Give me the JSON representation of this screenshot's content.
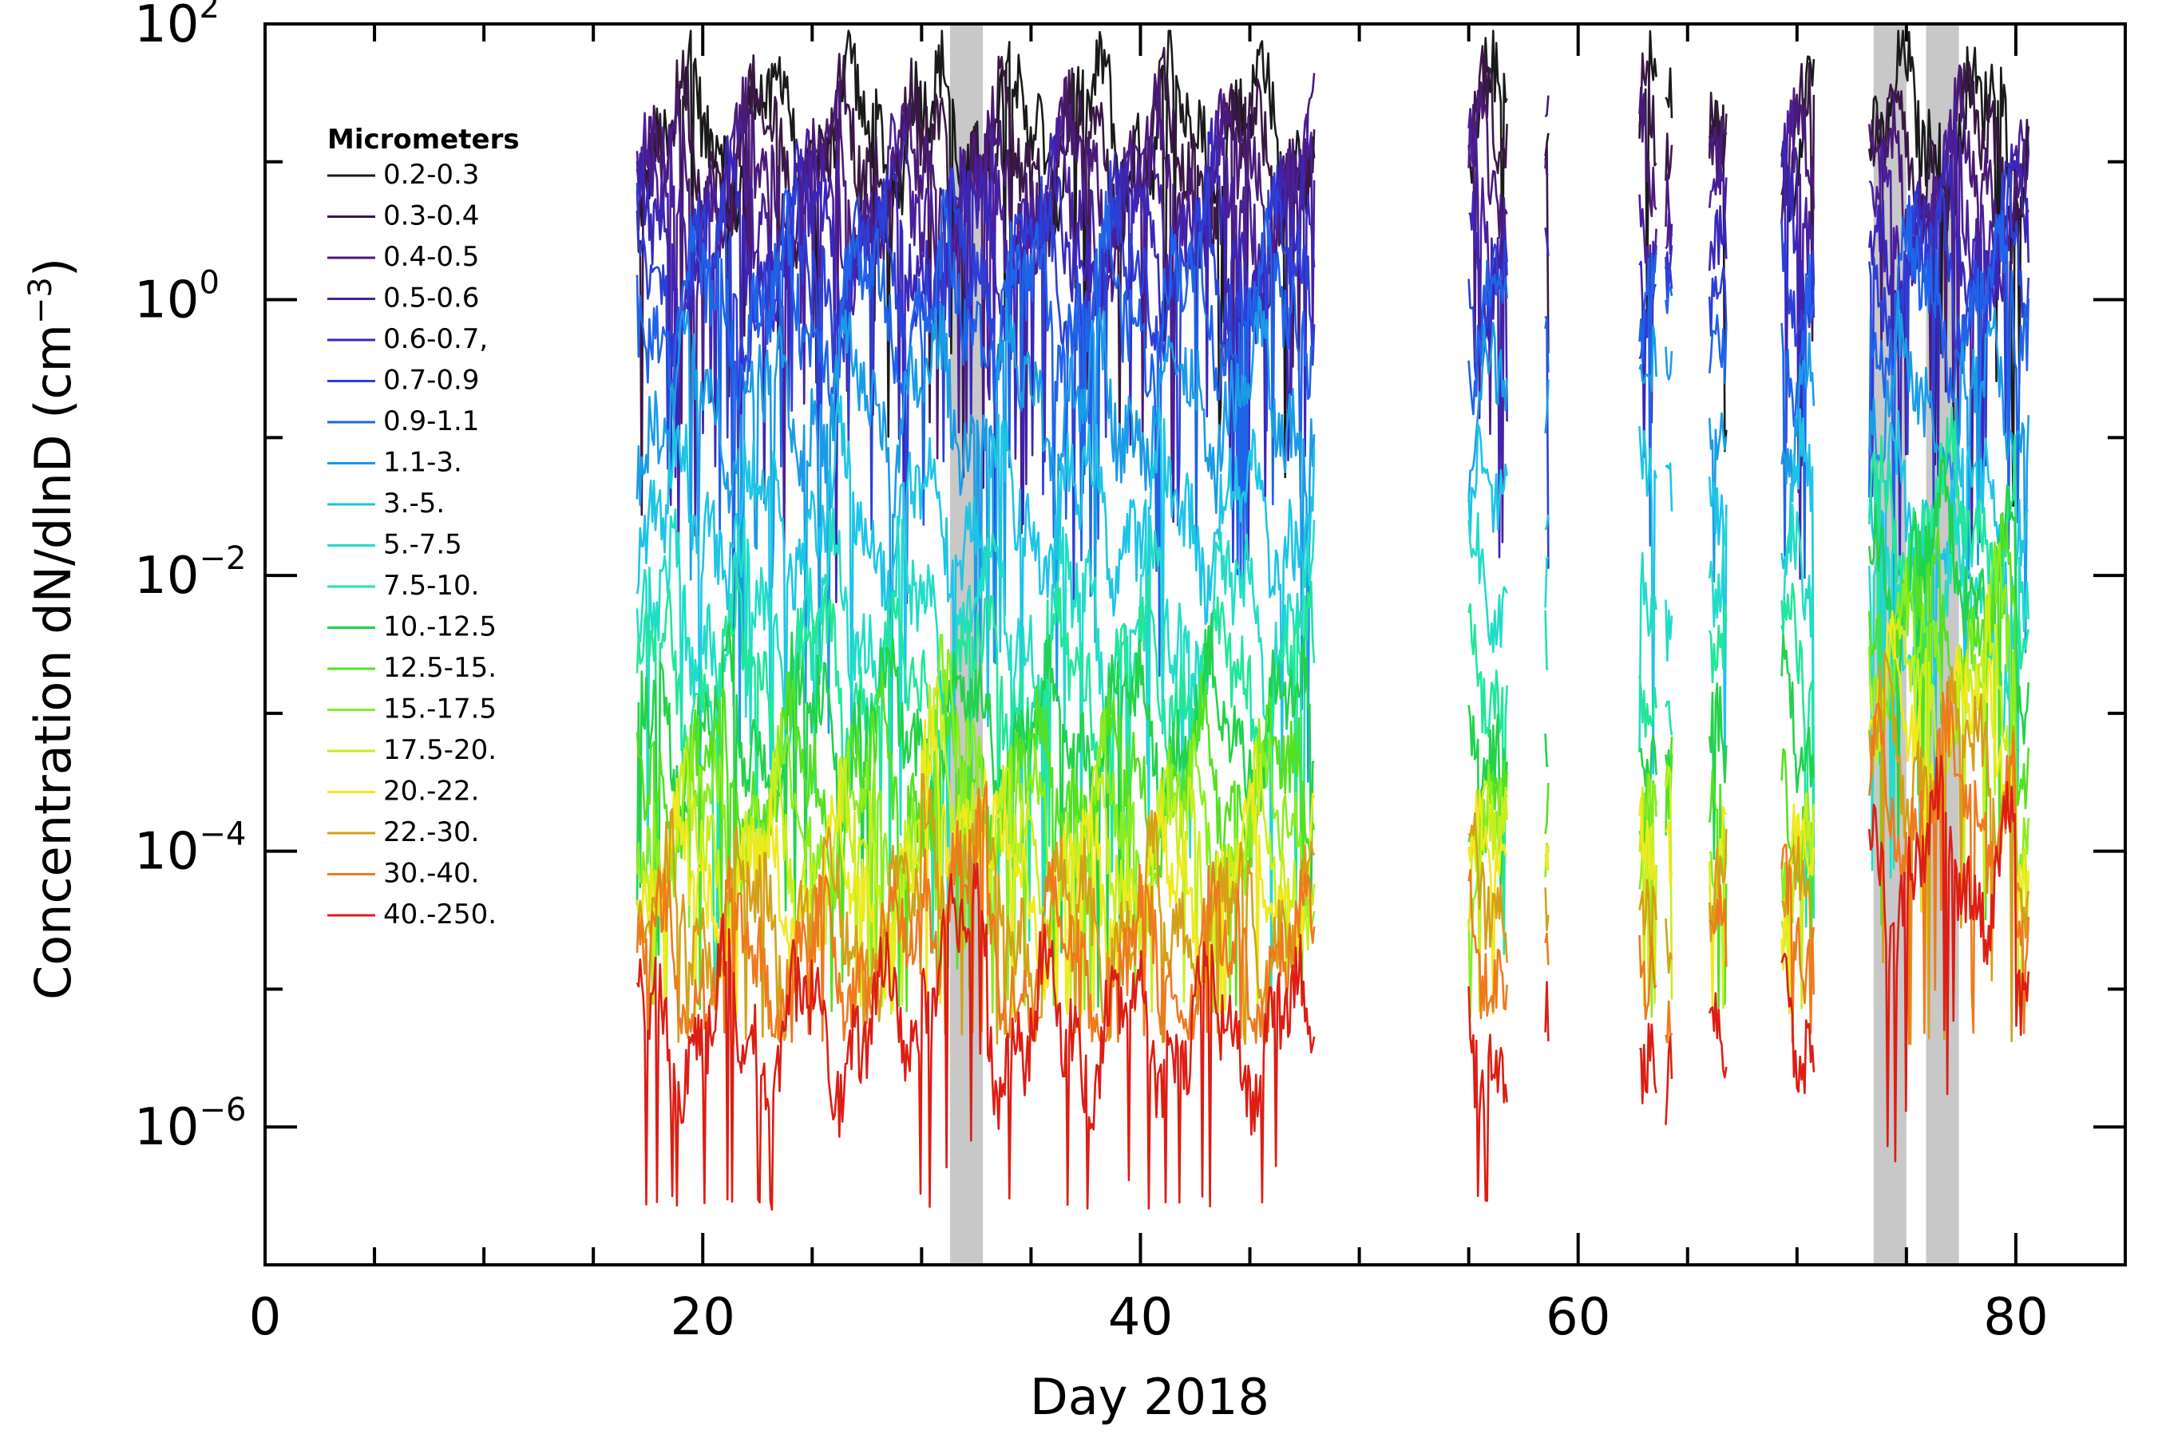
{
  "chart_data": {
    "type": "line",
    "title": "",
    "xlabel": "Day 2018",
    "ylabel": {
      "main": "Concentration dN/dlnD (cm",
      "sup": "−3",
      "close": ")"
    },
    "xlim": [
      0,
      85
    ],
    "ylim_log10": [
      -7.0,
      2.0
    ],
    "y_scale": "log",
    "x_ticks": [
      {
        "value": 0,
        "label": "0"
      },
      {
        "value": 20,
        "label": "20"
      },
      {
        "value": 40,
        "label": "40"
      },
      {
        "value": 60,
        "label": "60"
      },
      {
        "value": 80,
        "label": "80"
      }
    ],
    "y_ticks": [
      {
        "log": 2,
        "base": "10",
        "exp": "2"
      },
      {
        "log": 0,
        "base": "10",
        "exp": "0"
      },
      {
        "log": -2,
        "base": "10",
        "exp": "−2"
      },
      {
        "log": -4,
        "base": "10",
        "exp": "−4"
      },
      {
        "log": -6,
        "base": "10",
        "exp": "−6"
      }
    ],
    "grid": false,
    "legend_position": "top-left",
    "legend_title": "Micrometers",
    "shaded_periods": [
      {
        "start": 31.3,
        "end": 32.8
      },
      {
        "start": 73.5,
        "end": 75.0
      },
      {
        "start": 75.9,
        "end": 77.4
      }
    ],
    "data_segments": [
      [
        17.0,
        48.0
      ],
      [
        55.0,
        56.8
      ],
      [
        58.5,
        58.7
      ],
      [
        62.8,
        63.6
      ],
      [
        64.0,
        64.3
      ],
      [
        66.0,
        66.8
      ],
      [
        69.3,
        70.8
      ],
      [
        73.3,
        80.6
      ]
    ],
    "series": [
      {
        "name": "0.2-0.3",
        "color": "#1a1a1a",
        "level": 1.25,
        "floor": -9
      },
      {
        "name": "0.3-0.4",
        "color": "#3a1846",
        "level": 1.05,
        "floor": -9
      },
      {
        "name": "0.4-0.5",
        "color": "#4a1a78",
        "level": 0.85,
        "floor": -9
      },
      {
        "name": "0.5-0.6",
        "color": "#4a1f9a",
        "level": 0.65,
        "floor": -9
      },
      {
        "name": "0.6-0.7,",
        "color": "#3a26b8",
        "level": 0.45,
        "floor": -9
      },
      {
        "name": "0.7-0.9",
        "color": "#2c3fd6",
        "level": 0.2,
        "floor": -9
      },
      {
        "name": "0.9-1.1",
        "color": "#1f63e8",
        "level": -0.05,
        "floor": -9
      },
      {
        "name": "1.1-3.",
        "color": "#1a9be6",
        "level": -0.75,
        "floor": -9
      },
      {
        "name": "3.-5.",
        "color": "#1ec4e6",
        "level": -1.55,
        "floor": -9
      },
      {
        "name": "5.-7.5",
        "color": "#22dcc8",
        "level": -2.3,
        "floor": -9
      },
      {
        "name": "7.5-10.",
        "color": "#22e69a",
        "level": -2.75,
        "floor": -5.2
      },
      {
        "name": "10.-12.5",
        "color": "#22d24a",
        "level": -3.1,
        "floor": -5.2
      },
      {
        "name": "12.5-15.",
        "color": "#55e022",
        "level": -3.5,
        "floor": -5.2
      },
      {
        "name": "15.-17.5",
        "color": "#8aec22",
        "level": -3.8,
        "floor": -5.2
      },
      {
        "name": "17.5-20.",
        "color": "#c8ee1e",
        "level": -4.05,
        "floor": -5.2
      },
      {
        "name": "20.-22.",
        "color": "#eeea1e",
        "level": -4.25,
        "floor": -5.2
      },
      {
        "name": "22.-30.",
        "color": "#d4a018",
        "level": -4.5,
        "floor": -5.4
      },
      {
        "name": "30.-40.",
        "color": "#ee7a1e",
        "level": -4.8,
        "floor": -5.4
      },
      {
        "name": "40.-250.",
        "color": "#dc1e14",
        "level": -5.3,
        "floor": -6.6
      }
    ]
  }
}
